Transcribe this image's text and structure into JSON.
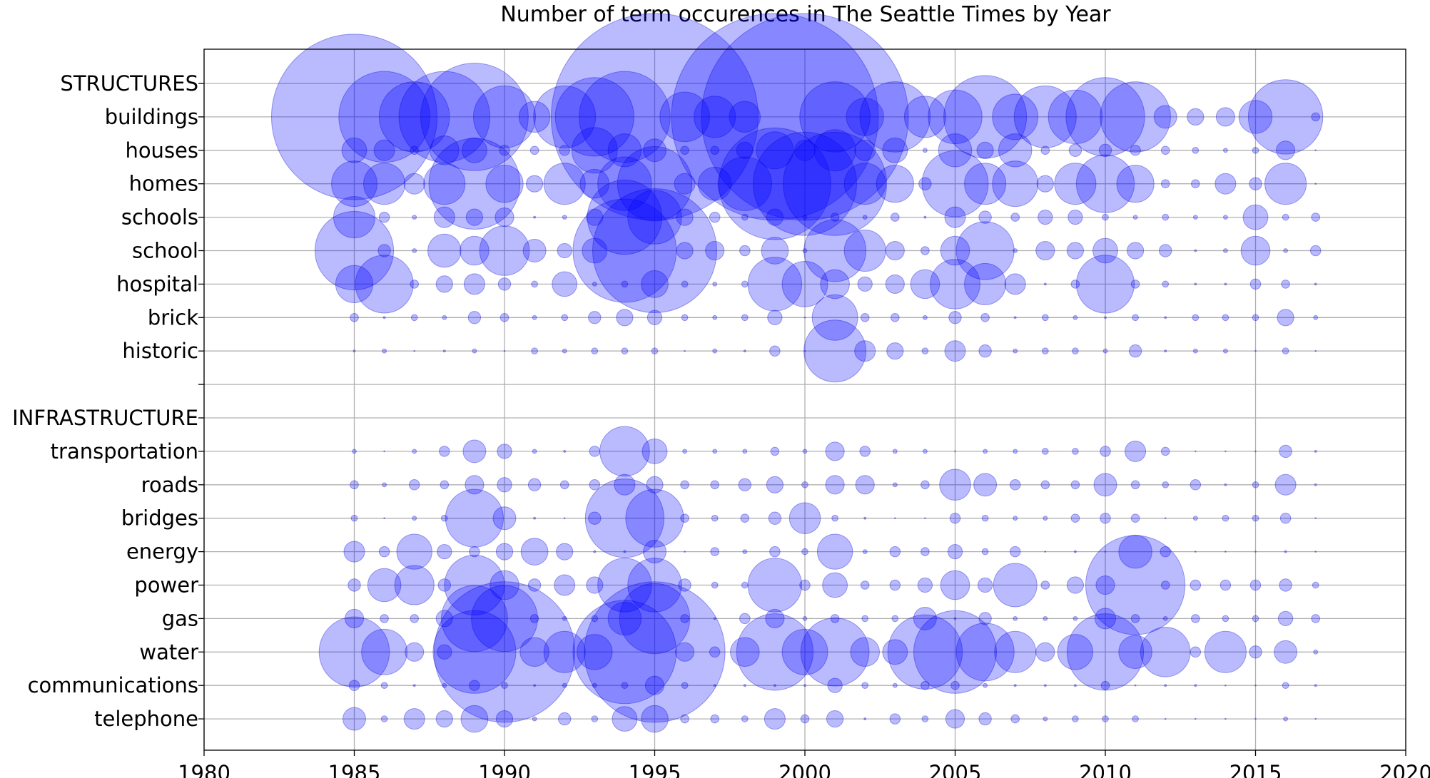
{
  "chart_data": {
    "type": "scatter",
    "title": "Number of term occurences in The Seattle Times by Year",
    "xlim": [
      1980,
      2020
    ],
    "x_ticks": [
      1980,
      1985,
      1990,
      1995,
      2000,
      2005,
      2010,
      2015,
      2020
    ],
    "grid": true,
    "y_categories": [
      "STRUCTURES",
      "buildings",
      "houses",
      "homes",
      "schools",
      "school",
      "hospital",
      "brick",
      "historic",
      "",
      "INFRASTRUCTURE",
      "transportation",
      "roads",
      "bridges",
      "energy",
      "power",
      "gas",
      "water",
      "communications",
      "telephone"
    ],
    "years": [
      1985,
      1986,
      1987,
      1988,
      1989,
      1990,
      1991,
      1992,
      1993,
      1994,
      1995,
      1996,
      1997,
      1998,
      1999,
      2000,
      2001,
      2002,
      2003,
      2004,
      2005,
      2006,
      2007,
      2008,
      2009,
      2010,
      2011,
      2012,
      2013,
      2014,
      2015,
      2016,
      2017
    ],
    "series": [
      {
        "name": "buildings",
        "values": [
          80,
          44,
          34,
          44,
          52,
          30,
          15,
          30,
          38,
          44,
          100,
          24,
          20,
          15,
          100,
          100,
          34,
          18,
          34,
          20,
          26,
          40,
          22,
          30,
          26,
          38,
          34,
          11,
          8,
          9,
          16,
          36,
          4
        ]
      },
      {
        "name": "houses",
        "values": [
          12,
          10,
          4,
          14,
          12,
          5,
          4,
          5,
          22,
          16,
          11,
          4,
          4,
          8,
          18,
          10,
          20,
          10,
          12,
          2,
          16,
          8,
          16,
          4,
          6,
          6,
          5,
          4,
          3,
          2,
          3,
          9,
          0
        ]
      },
      {
        "name": "homes",
        "values": [
          22,
          20,
          10,
          20,
          44,
          18,
          8,
          20,
          14,
          26,
          36,
          10,
          16,
          26,
          54,
          50,
          50,
          20,
          18,
          6,
          32,
          20,
          22,
          8,
          20,
          28,
          18,
          4,
          4,
          10,
          6,
          20,
          0
        ]
      },
      {
        "name": "schools",
        "values": [
          20,
          5,
          2,
          10,
          8,
          9,
          1,
          2,
          8,
          36,
          26,
          8,
          5,
          3,
          8,
          2,
          4,
          2,
          4,
          1,
          10,
          6,
          4,
          7,
          7,
          3,
          2,
          3,
          2,
          2,
          12,
          3,
          4
        ]
      },
      {
        "name": "school",
        "values": [
          38,
          6,
          2,
          16,
          14,
          24,
          11,
          7,
          12,
          50,
          60,
          8,
          9,
          5,
          13,
          2,
          30,
          20,
          9,
          4,
          14,
          28,
          2,
          9,
          8,
          12,
          8,
          6,
          1,
          2,
          14,
          2,
          5
        ]
      },
      {
        "name": "hospital",
        "values": [
          18,
          28,
          4,
          8,
          10,
          6,
          3,
          12,
          2,
          3,
          13,
          3,
          2,
          3,
          26,
          22,
          14,
          7,
          9,
          14,
          24,
          20,
          10,
          1,
          4,
          28,
          4,
          3,
          1,
          1,
          5,
          4,
          1
        ]
      },
      {
        "name": "brick",
        "values": [
          4,
          1,
          3,
          2,
          6,
          4,
          2,
          3,
          6,
          8,
          7,
          3,
          2,
          3,
          7,
          0,
          22,
          4,
          4,
          2,
          6,
          4,
          1,
          3,
          2,
          1,
          3,
          1,
          3,
          3,
          3,
          8,
          2
        ]
      },
      {
        "name": "historic",
        "values": [
          1,
          2,
          0,
          1,
          2,
          0,
          3,
          2,
          3,
          3,
          3,
          0,
          2,
          1,
          5,
          0,
          30,
          10,
          8,
          3,
          10,
          6,
          2,
          3,
          3,
          2,
          6,
          1,
          2,
          2,
          0,
          3,
          0
        ]
      },
      {
        "name": "transportation",
        "values": [
          2,
          0,
          2,
          5,
          11,
          7,
          2,
          1,
          5,
          24,
          12,
          2,
          2,
          2,
          4,
          2,
          9,
          5,
          2,
          2,
          0,
          2,
          2,
          3,
          3,
          5,
          10,
          4,
          0,
          0,
          0,
          6,
          1
        ]
      },
      {
        "name": "roads",
        "values": [
          4,
          2,
          5,
          4,
          9,
          7,
          6,
          4,
          5,
          10,
          8,
          4,
          4,
          6,
          8,
          3,
          9,
          9,
          2,
          4,
          15,
          11,
          5,
          4,
          4,
          11,
          4,
          3,
          5,
          1,
          3,
          10,
          1
        ]
      },
      {
        "name": "bridges",
        "values": [
          3,
          0,
          2,
          3,
          28,
          11,
          1,
          0,
          6,
          38,
          28,
          4,
          3,
          4,
          6,
          15,
          3,
          1,
          0,
          0,
          5,
          3,
          2,
          2,
          4,
          5,
          4,
          0,
          2,
          3,
          3,
          5,
          0
        ]
      },
      {
        "name": "energy",
        "values": [
          10,
          5,
          17,
          7,
          5,
          8,
          13,
          8,
          1,
          1,
          11,
          0,
          4,
          2,
          5,
          3,
          17,
          2,
          5,
          4,
          7,
          3,
          5,
          0,
          1,
          0,
          16,
          5,
          0,
          0,
          0,
          1,
          0
        ]
      },
      {
        "name": "power",
        "values": [
          6,
          16,
          19,
          6,
          29,
          14,
          6,
          10,
          8,
          26,
          26,
          6,
          3,
          3,
          26,
          5,
          12,
          4,
          5,
          7,
          14,
          7,
          21,
          4,
          8,
          9,
          48,
          4,
          5,
          5,
          5,
          6,
          3
        ]
      },
      {
        "name": "gas",
        "values": [
          9,
          4,
          4,
          8,
          32,
          32,
          4,
          2,
          3,
          16,
          34,
          4,
          1,
          5,
          9,
          2,
          4,
          3,
          3,
          11,
          1,
          6,
          2,
          2,
          2,
          10,
          4,
          2,
          4,
          3,
          3,
          7,
          4
        ]
      },
      {
        "name": "water",
        "values": [
          34,
          22,
          9,
          7,
          40,
          68,
          14,
          20,
          17,
          50,
          68,
          9,
          5,
          14,
          37,
          22,
          33,
          14,
          12,
          36,
          40,
          28,
          20,
          9,
          17,
          37,
          16,
          24,
          5,
          20,
          6,
          11,
          2
        ]
      },
      {
        "name": "communications",
        "values": [
          5,
          3,
          1,
          2,
          5,
          3,
          1,
          2,
          2,
          3,
          9,
          3,
          1,
          1,
          1,
          1,
          7,
          3,
          2,
          4,
          4,
          2,
          1,
          1,
          1,
          4,
          0,
          1,
          1,
          0,
          0,
          3,
          1
        ]
      },
      {
        "name": "telephone",
        "values": [
          11,
          3,
          10,
          8,
          13,
          8,
          2,
          6,
          3,
          12,
          13,
          4,
          4,
          3,
          10,
          4,
          8,
          1,
          5,
          3,
          9,
          6,
          4,
          2,
          3,
          3,
          3,
          0,
          0,
          0,
          0,
          2,
          0
        ]
      }
    ]
  }
}
